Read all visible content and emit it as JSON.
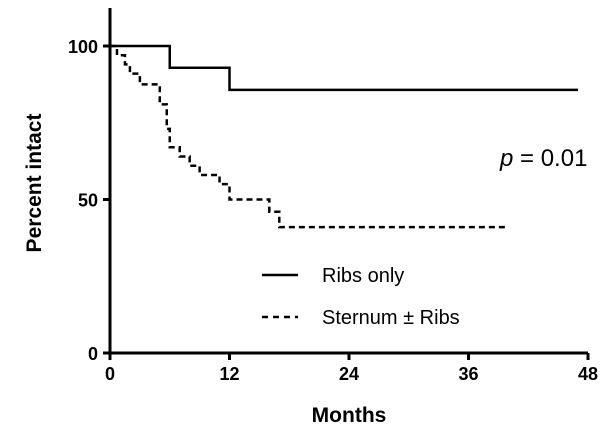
{
  "chart_data": {
    "type": "line",
    "step": true,
    "xlabel": "Months",
    "ylabel": "Percent intact",
    "xlim": [
      0,
      48
    ],
    "ylim": [
      0,
      100
    ],
    "x_ticks": [
      0,
      12,
      24,
      36,
      48
    ],
    "x_tick_labels": [
      "0",
      "12",
      "24",
      "36",
      "48"
    ],
    "y_ticks": [
      0,
      50,
      100
    ],
    "y_tick_labels": [
      "0",
      "50",
      "100"
    ],
    "grid": false,
    "legend_position": "lower-center",
    "series": [
      {
        "name": "Ribs only",
        "line_style": "solid",
        "points": [
          [
            0,
            100
          ],
          [
            6,
            92.9
          ],
          [
            12,
            85.7
          ],
          [
            47,
            85.7
          ]
        ]
      },
      {
        "name": "Sternum ± Ribs",
        "line_style": "dashed",
        "points": [
          [
            0,
            100
          ],
          [
            0.7,
            97
          ],
          [
            1.5,
            94
          ],
          [
            2,
            91
          ],
          [
            3,
            87.5
          ],
          [
            5,
            81
          ],
          [
            5.7,
            73
          ],
          [
            6,
            67
          ],
          [
            7,
            64
          ],
          [
            8,
            61
          ],
          [
            9,
            58
          ],
          [
            11,
            55
          ],
          [
            12,
            50
          ],
          [
            16,
            46
          ],
          [
            17,
            41
          ],
          [
            40,
            41
          ]
        ]
      }
    ],
    "annotation": {
      "prefix": "p",
      "text": " = 0.01"
    }
  }
}
